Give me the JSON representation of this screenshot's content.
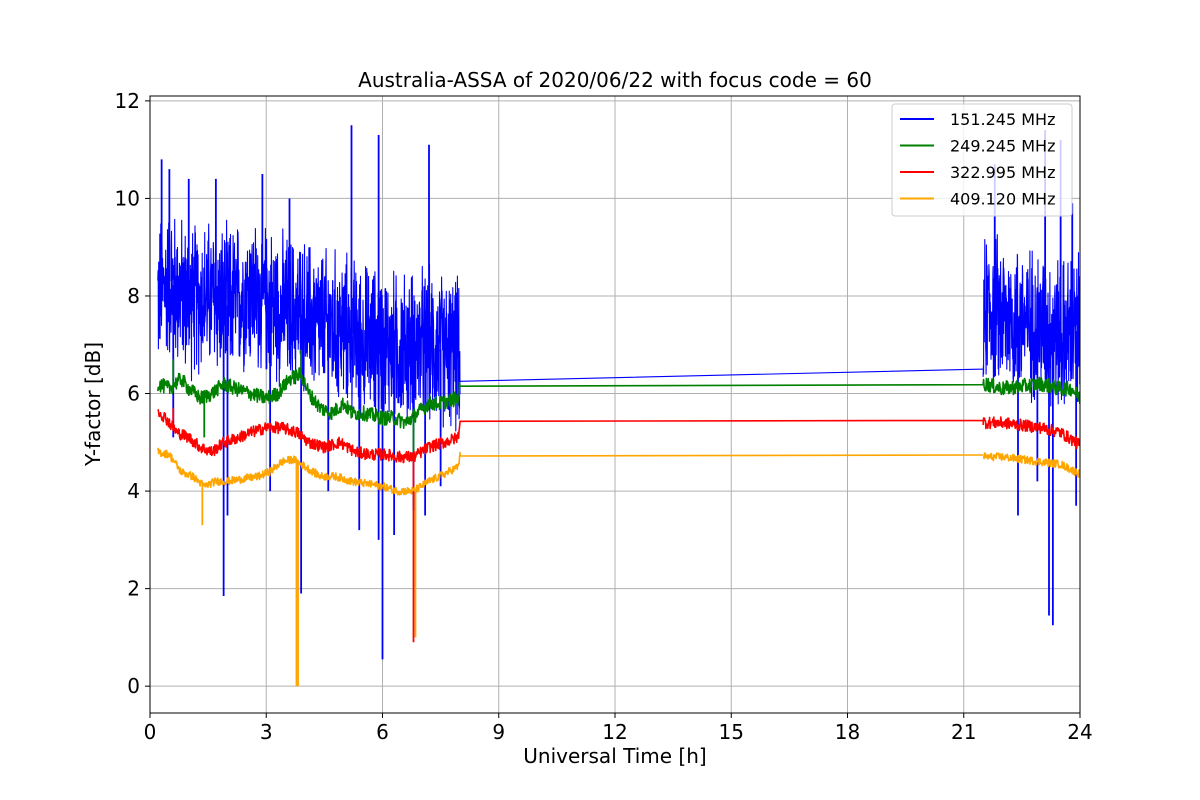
{
  "chart_data": {
    "type": "line",
    "title": "Australia-ASSA of 2020/06/22 with focus code = 60",
    "xlabel": "Universal Time [h]",
    "ylabel": "Y-factor [dB]",
    "xlim": [
      0,
      24
    ],
    "ylim": [
      -0.55,
      12.1
    ],
    "xticks": [
      0,
      3,
      6,
      9,
      12,
      15,
      18,
      21,
      24
    ],
    "yticks": [
      0,
      2,
      4,
      6,
      8,
      10,
      12
    ],
    "grid": true,
    "legend_position": "top-right",
    "segments": [
      [
        0.2,
        8.0
      ],
      [
        21.5,
        24.0
      ]
    ],
    "series": [
      {
        "name": "151.245 MHz",
        "color": "#0000ff",
        "points": [
          [
            0.2,
            8.0
          ],
          [
            0.5,
            8.3
          ],
          [
            1.0,
            7.9
          ],
          [
            1.5,
            8.0
          ],
          [
            2.0,
            7.8
          ],
          [
            2.5,
            8.1
          ],
          [
            3.0,
            7.9
          ],
          [
            3.5,
            7.7
          ],
          [
            4.0,
            7.6
          ],
          [
            4.5,
            7.4
          ],
          [
            5.0,
            7.3
          ],
          [
            5.5,
            7.1
          ],
          [
            6.0,
            7.0
          ],
          [
            6.5,
            6.9
          ],
          [
            7.0,
            7.0
          ],
          [
            7.5,
            6.9
          ],
          [
            7.95,
            6.8
          ],
          [
            8.0,
            6.25
          ],
          [
            21.5,
            6.5
          ],
          [
            21.55,
            7.8
          ],
          [
            22.0,
            7.6
          ],
          [
            22.5,
            7.5
          ],
          [
            23.0,
            7.4
          ],
          [
            23.5,
            7.2
          ],
          [
            24.0,
            7.3
          ]
        ],
        "noise_amplitude": 1.3,
        "spikes": [
          [
            0.3,
            10.8
          ],
          [
            0.5,
            10.6
          ],
          [
            1.0,
            10.4
          ],
          [
            1.7,
            10.4
          ],
          [
            2.9,
            10.5
          ],
          [
            3.6,
            10.0
          ],
          [
            5.2,
            11.5
          ],
          [
            5.9,
            11.3
          ],
          [
            7.2,
            11.1
          ],
          [
            21.8,
            10.7
          ],
          [
            23.1,
            11.4
          ],
          [
            23.5,
            11.2
          ],
          [
            23.8,
            9.9
          ],
          [
            0.6,
            5.1
          ],
          [
            1.9,
            1.85
          ],
          [
            2.0,
            3.5
          ],
          [
            3.1,
            4.0
          ],
          [
            3.9,
            1.9
          ],
          [
            4.6,
            4.0
          ],
          [
            5.4,
            3.2
          ],
          [
            5.9,
            3.0
          ],
          [
            6.0,
            0.55
          ],
          [
            6.3,
            3.1
          ],
          [
            6.8,
            3.6
          ],
          [
            7.1,
            3.5
          ],
          [
            7.5,
            4.1
          ],
          [
            22.4,
            3.5
          ],
          [
            22.9,
            4.2
          ],
          [
            23.2,
            1.45
          ],
          [
            23.3,
            1.25
          ],
          [
            23.9,
            3.7
          ]
        ]
      },
      {
        "name": "249.245 MHz",
        "color": "#008000",
        "points": [
          [
            0.2,
            6.2
          ],
          [
            0.5,
            6.1
          ],
          [
            0.8,
            6.3
          ],
          [
            1.0,
            6.1
          ],
          [
            1.3,
            5.9
          ],
          [
            1.6,
            6.0
          ],
          [
            1.9,
            6.2
          ],
          [
            2.2,
            6.1
          ],
          [
            2.6,
            6.0
          ],
          [
            3.0,
            5.9
          ],
          [
            3.3,
            6.0
          ],
          [
            3.6,
            6.3
          ],
          [
            3.9,
            6.4
          ],
          [
            4.1,
            6.0
          ],
          [
            4.4,
            5.7
          ],
          [
            4.7,
            5.6
          ],
          [
            5.0,
            5.8
          ],
          [
            5.2,
            5.6
          ],
          [
            5.5,
            5.6
          ],
          [
            6.0,
            5.5
          ],
          [
            6.3,
            5.5
          ],
          [
            6.6,
            5.4
          ],
          [
            6.9,
            5.6
          ],
          [
            7.2,
            5.8
          ],
          [
            7.5,
            5.8
          ],
          [
            7.95,
            5.9
          ],
          [
            8.0,
            6.15
          ],
          [
            21.5,
            6.18
          ],
          [
            21.55,
            6.2
          ],
          [
            22.0,
            6.1
          ],
          [
            22.5,
            6.15
          ],
          [
            23.0,
            6.2
          ],
          [
            23.5,
            6.1
          ],
          [
            23.8,
            6.1
          ],
          [
            24.0,
            5.9
          ]
        ],
        "noise_amplitude": 0.15,
        "spikes": [
          [
            0.6,
            6.7
          ],
          [
            1.4,
            5.1
          ],
          [
            3.9,
            6.9
          ],
          [
            6.8,
            4.8
          ]
        ]
      },
      {
        "name": "322.995 MHz",
        "color": "#ff0000",
        "points": [
          [
            0.2,
            5.65
          ],
          [
            0.4,
            5.5
          ],
          [
            0.7,
            5.2
          ],
          [
            1.0,
            5.1
          ],
          [
            1.3,
            4.9
          ],
          [
            1.6,
            4.8
          ],
          [
            1.9,
            5.0
          ],
          [
            2.3,
            5.1
          ],
          [
            2.6,
            5.2
          ],
          [
            3.0,
            5.3
          ],
          [
            3.4,
            5.3
          ],
          [
            3.8,
            5.2
          ],
          [
            4.1,
            5.0
          ],
          [
            4.5,
            4.9
          ],
          [
            4.9,
            5.0
          ],
          [
            5.3,
            4.8
          ],
          [
            5.7,
            4.75
          ],
          [
            6.1,
            4.75
          ],
          [
            6.4,
            4.7
          ],
          [
            6.8,
            4.7
          ],
          [
            7.2,
            4.9
          ],
          [
            7.6,
            5.0
          ],
          [
            7.95,
            5.1
          ],
          [
            8.0,
            5.43
          ],
          [
            21.5,
            5.45
          ],
          [
            21.55,
            5.4
          ],
          [
            22.0,
            5.4
          ],
          [
            22.5,
            5.35
          ],
          [
            23.0,
            5.3
          ],
          [
            23.5,
            5.2
          ],
          [
            24.0,
            4.95
          ]
        ],
        "noise_amplitude": 0.12,
        "spikes": [
          [
            0.6,
            5.7
          ],
          [
            6.8,
            0.9
          ]
        ]
      },
      {
        "name": "409.120 MHz",
        "color": "#ffa500",
        "points": [
          [
            0.2,
            4.8
          ],
          [
            0.5,
            4.75
          ],
          [
            0.8,
            4.4
          ],
          [
            1.1,
            4.3
          ],
          [
            1.4,
            4.1
          ],
          [
            1.7,
            4.2
          ],
          [
            2.0,
            4.2
          ],
          [
            2.4,
            4.25
          ],
          [
            2.8,
            4.3
          ],
          [
            3.1,
            4.4
          ],
          [
            3.4,
            4.6
          ],
          [
            3.7,
            4.65
          ],
          [
            4.0,
            4.5
          ],
          [
            4.4,
            4.3
          ],
          [
            4.8,
            4.3
          ],
          [
            5.2,
            4.2
          ],
          [
            5.6,
            4.15
          ],
          [
            6.0,
            4.1
          ],
          [
            6.4,
            4.0
          ],
          [
            6.8,
            4.0
          ],
          [
            7.2,
            4.2
          ],
          [
            7.6,
            4.35
          ],
          [
            7.95,
            4.5
          ],
          [
            8.0,
            4.72
          ],
          [
            21.5,
            4.74
          ],
          [
            21.55,
            4.7
          ],
          [
            22.0,
            4.7
          ],
          [
            22.5,
            4.65
          ],
          [
            23.0,
            4.6
          ],
          [
            23.5,
            4.55
          ],
          [
            24.0,
            4.35
          ]
        ],
        "noise_amplitude": 0.08,
        "spikes": [
          [
            1.35,
            3.3
          ],
          [
            3.78,
            0.0
          ],
          [
            3.82,
            0.0
          ],
          [
            6.85,
            1.0
          ]
        ]
      }
    ]
  }
}
